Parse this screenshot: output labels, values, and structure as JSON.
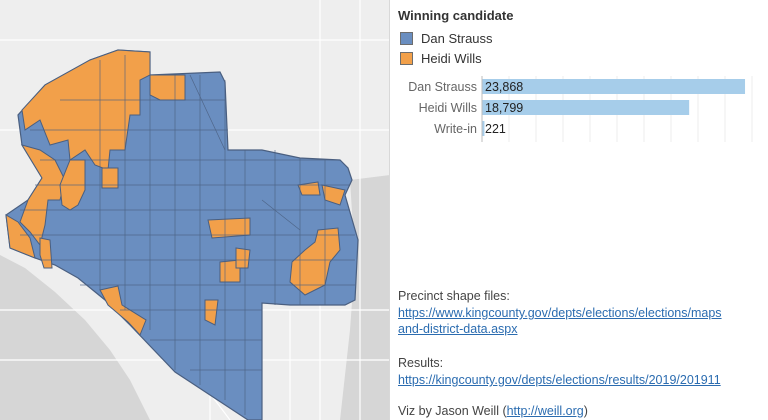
{
  "legend": {
    "title": "Winning candidate",
    "items": [
      {
        "label": "Dan Strauss",
        "color": "#6a8ec0"
      },
      {
        "label": "Heidi Wills",
        "color": "#f2a04a"
      }
    ]
  },
  "chart_data": {
    "type": "bar",
    "orientation": "horizontal",
    "categories": [
      "Dan Strauss",
      "Heidi Wills",
      "Write-in"
    ],
    "values": [
      23868,
      18799,
      221
    ],
    "value_labels": [
      "23,868",
      "18,799",
      "221"
    ],
    "xlim": [
      0,
      24500
    ],
    "bar_color": "#a6cdea",
    "grid": true
  },
  "notes": {
    "shape_label": "Precinct shape files:",
    "shape_link_line1": "https://www.kingcounty.gov/depts/elections/elections/maps",
    "shape_link_line2": "and-district-data.aspx",
    "results_label": "Results:",
    "results_link": "https://kingcounty.gov/depts/elections/results/2019/201911",
    "credit_prefix": "Viz by Jason Weill (",
    "credit_link": "http://weill.org",
    "credit_suffix": ")"
  },
  "map": {
    "colors": {
      "strauss": "#6a8ec0",
      "wills": "#f2a04a",
      "outline": "#4a5f80",
      "water": "#d6d6d6",
      "land": "#eeeeee",
      "road": "#ffffff"
    }
  }
}
